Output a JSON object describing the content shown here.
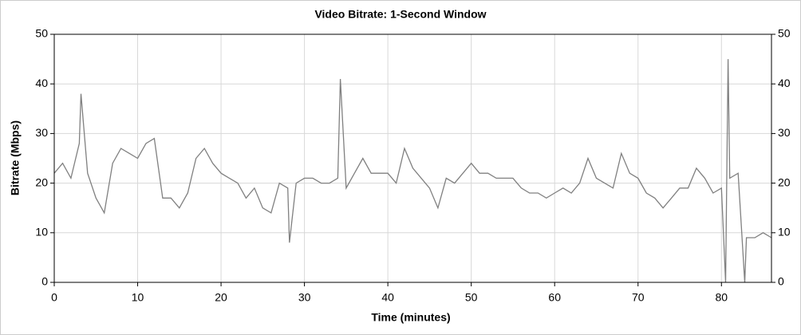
{
  "chart_data": {
    "type": "line",
    "title": "Video Bitrate: 1-Second Window",
    "x_label": "Time (minutes)",
    "y_label": "Bitrate (Mbps)",
    "x": [
      0,
      1,
      2,
      3,
      3.2,
      4,
      5,
      6,
      7,
      8,
      9,
      10,
      11,
      12,
      13,
      14,
      15,
      16,
      17,
      18,
      19,
      20,
      21,
      22,
      23,
      24,
      25,
      26,
      27,
      28,
      28.2,
      29,
      30,
      31,
      32,
      33,
      34,
      34.3,
      35,
      36,
      37,
      38,
      39,
      40,
      41,
      42,
      43,
      44,
      45,
      46,
      47,
      48,
      49,
      50,
      51,
      52,
      53,
      54,
      55,
      56,
      57,
      58,
      59,
      60,
      61,
      62,
      63,
      64,
      65,
      66,
      67,
      68,
      69,
      70,
      71,
      72,
      73,
      74,
      75,
      76,
      77,
      78,
      79,
      80,
      80.5,
      80.8,
      81,
      82,
      82.8,
      83,
      84,
      85,
      86
    ],
    "values": [
      22,
      24,
      21,
      28,
      38,
      22,
      17,
      14,
      24,
      27,
      26,
      25,
      28,
      29,
      17,
      17,
      15,
      18,
      25,
      27,
      24,
      22,
      21,
      20,
      17,
      19,
      15,
      14,
      20,
      19,
      8,
      20,
      21,
      21,
      20,
      20,
      21,
      41,
      19,
      22,
      25,
      22,
      22,
      22,
      20,
      27,
      23,
      21,
      19,
      15,
      21,
      20,
      22,
      24,
      22,
      22,
      21,
      21,
      21,
      19,
      18,
      18,
      17,
      18,
      19,
      18,
      20,
      25,
      21,
      20,
      19,
      26,
      22,
      21,
      18,
      17,
      15,
      17,
      19,
      19,
      23,
      21,
      18,
      19,
      0,
      45,
      21,
      22,
      0,
      9,
      9,
      10,
      9
    ],
    "color": "#808080",
    "xlim": [
      0,
      86
    ],
    "ylim": [
      0,
      50
    ],
    "y2lim": [
      0,
      50
    ],
    "xticks": [
      0,
      10,
      20,
      30,
      40,
      50,
      60,
      70,
      80
    ],
    "yticks": [
      0,
      10,
      20,
      30,
      40,
      50
    ],
    "y2ticks": [
      0,
      10,
      20,
      30,
      40,
      50
    ],
    "grid": true
  }
}
